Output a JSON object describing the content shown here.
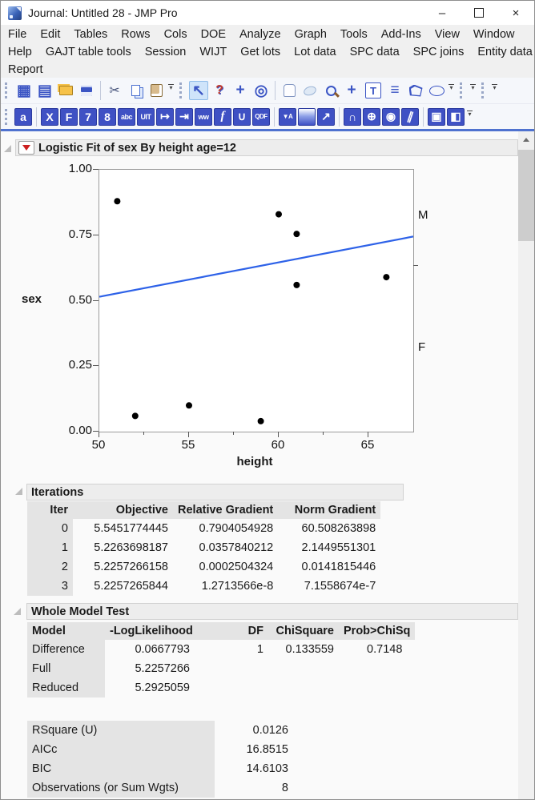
{
  "window": {
    "title": "Journal: Untitled 28 - JMP Pro",
    "controls": {
      "minimize": "–",
      "close": "×"
    }
  },
  "menu": {
    "rows": [
      [
        "File",
        "Edit",
        "Tables",
        "Rows",
        "Cols",
        "DOE",
        "Analyze",
        "Graph",
        "Tools",
        "Add-Ins",
        "View",
        "Window"
      ],
      [
        "Help",
        "GAJT table tools",
        "Session",
        "WIJT",
        "Get lots",
        "Lot data",
        "SPC data",
        "SPC joins",
        "Entity data"
      ],
      [
        "Report"
      ]
    ]
  },
  "toolbar1": {
    "items": [
      {
        "t": "grip"
      },
      {
        "t": "icon",
        "name": "new-data-table-icon",
        "glyph": "▦",
        "cls": "c-blue big"
      },
      {
        "t": "icon",
        "name": "new-journal-icon",
        "glyph": "▤",
        "cls": "c-blue big"
      },
      {
        "t": "icon",
        "name": "open-icon",
        "glyph": "",
        "cls": "folder"
      },
      {
        "t": "icon",
        "name": "save-icon",
        "glyph": "",
        "cls": "floppy"
      },
      {
        "t": "sep"
      },
      {
        "t": "icon",
        "name": "cut-icon",
        "glyph": "✂",
        "cls": "c-steel"
      },
      {
        "t": "icon",
        "name": "copy-icon",
        "glyph": "",
        "cls": "copy"
      },
      {
        "t": "icon",
        "name": "paste-icon",
        "glyph": "",
        "cls": "paste"
      },
      {
        "t": "drop"
      },
      {
        "t": "grip"
      },
      {
        "t": "icon",
        "name": "pointer-tool-icon",
        "glyph": "↖",
        "cls": "c-blue big sel"
      },
      {
        "t": "icon",
        "name": "help-tool-icon",
        "glyph": "?",
        "cls": "c-help"
      },
      {
        "t": "icon",
        "name": "selection-tool-icon",
        "glyph": "+",
        "cls": "c-blue big"
      },
      {
        "t": "icon",
        "name": "bullseye-tool-icon",
        "glyph": "◎",
        "cls": "c-blue big"
      },
      {
        "t": "sep"
      },
      {
        "t": "icon",
        "name": "grabber-hand-tool-icon",
        "glyph": "",
        "cls": "hand"
      },
      {
        "t": "icon",
        "name": "lasso-tool-icon",
        "glyph": "",
        "cls": "lasso"
      },
      {
        "t": "icon",
        "name": "magnifier-tool-icon",
        "glyph": "",
        "cls": "mag"
      },
      {
        "t": "icon",
        "name": "crosshair-tool-icon",
        "glyph": "+",
        "cls": "c-blue big"
      },
      {
        "t": "icon",
        "name": "text-annotate-tool-icon",
        "glyph": "T",
        "cls": "ttool"
      },
      {
        "t": "icon",
        "name": "line-annotate-tool-icon",
        "glyph": "≡",
        "cls": "c-blue big"
      },
      {
        "t": "icon",
        "name": "polygon-tool-icon",
        "glyph": "",
        "cls": "poly"
      },
      {
        "t": "icon",
        "name": "oval-tool-icon",
        "glyph": "",
        "cls": "oval"
      },
      {
        "t": "drop"
      },
      {
        "t": "grip"
      },
      {
        "t": "drop"
      },
      {
        "t": "grip"
      },
      {
        "t": "drop"
      }
    ]
  },
  "toolbar2": {
    "items": [
      {
        "t": "grip"
      },
      {
        "t": "icon",
        "name": "journal-a-icon",
        "glyph": "a",
        "cls": "bsq"
      },
      {
        "t": "sep"
      },
      {
        "t": "icon",
        "name": "x-tool-icon",
        "glyph": "X",
        "cls": "bsq"
      },
      {
        "t": "icon",
        "name": "f-tool-icon",
        "glyph": "F",
        "cls": "bsq"
      },
      {
        "t": "icon",
        "name": "seven-tool-icon",
        "glyph": "7",
        "cls": "bsq"
      },
      {
        "t": "icon",
        "name": "eight-tool-icon",
        "glyph": "8",
        "cls": "bsq"
      },
      {
        "t": "icon",
        "name": "abc-strike-icon",
        "glyph": "abc",
        "cls": "bsq small"
      },
      {
        "t": "icon",
        "name": "uit-icon",
        "glyph": "UIT",
        "cls": "bsq small"
      },
      {
        "t": "icon",
        "name": "arrow-to-bar-icon",
        "glyph": "↦",
        "cls": "bsq"
      },
      {
        "t": "icon",
        "name": "arrow-to-dbl-bar-icon",
        "glyph": "⇥",
        "cls": "bsq"
      },
      {
        "t": "icon",
        "name": "ww-icon",
        "glyph": "ww",
        "cls": "bsq small"
      },
      {
        "t": "icon",
        "name": "function-f-icon",
        "glyph": "f",
        "cls": "bsq ital"
      },
      {
        "t": "icon",
        "name": "cup-icon",
        "glyph": "∪",
        "cls": "bsq"
      },
      {
        "t": "icon",
        "name": "qdf-icon",
        "glyph": "QDF",
        "cls": "bsq tiny"
      },
      {
        "t": "sep"
      },
      {
        "t": "icon",
        "name": "data-filter-icon",
        "glyph": "▼A",
        "cls": "bsq tiny"
      },
      {
        "t": "icon",
        "name": "gradient-square-icon",
        "glyph": "",
        "cls": "bsq grad"
      },
      {
        "t": "icon",
        "name": "grid-arrow-icon",
        "glyph": "↗",
        "cls": "bsq"
      },
      {
        "t": "sep"
      },
      {
        "t": "icon",
        "name": "normal-curve-icon",
        "glyph": "∩",
        "cls": "bsq"
      },
      {
        "t": "icon",
        "name": "mesh-globe-icon",
        "glyph": "⊕",
        "cls": "bsq"
      },
      {
        "t": "icon",
        "name": "circle-in-square-icon",
        "glyph": "◉",
        "cls": "bsq"
      },
      {
        "t": "icon",
        "name": "diagonal-lines-icon",
        "glyph": "∥",
        "cls": "bsq slant"
      },
      {
        "t": "sep"
      },
      {
        "t": "icon",
        "name": "chart-frame-icon",
        "glyph": "▣",
        "cls": "bsq"
      },
      {
        "t": "icon",
        "name": "half-shade-icon",
        "glyph": "◧",
        "cls": "bsq"
      },
      {
        "t": "drop"
      }
    ]
  },
  "report": {
    "title": "Logistic Fit of sex By height age=12",
    "iterations": {
      "title": "Iterations",
      "columns": [
        "Iter",
        "Objective",
        "Relative Gradient",
        "Norm Gradient"
      ],
      "rows": [
        [
          "0",
          "5.5451774445",
          "0.7904054928",
          "60.508263898"
        ],
        [
          "1",
          "5.2263698187",
          "0.0357840212",
          "2.1449551301"
        ],
        [
          "2",
          "5.2257266158",
          "0.0002504324",
          "0.0141815446"
        ],
        [
          "3",
          "5.2257265844",
          "1.2713566e-8",
          "7.1558674e-7"
        ]
      ]
    },
    "whole_model": {
      "title": "Whole Model Test",
      "columns": [
        "Model",
        "-LogLikelihood",
        "DF",
        "ChiSquare",
        "Prob>ChiSq"
      ],
      "rows": [
        [
          "Difference",
          "0.0667793",
          "1",
          "0.133559",
          "0.7148"
        ],
        [
          "Full",
          "5.2257266",
          "",
          "",
          ""
        ],
        [
          "Reduced",
          "5.2925059",
          "",
          "",
          ""
        ]
      ]
    },
    "fit_stats": {
      "rows": [
        [
          "RSquare (U)",
          "0.0126"
        ],
        [
          "AICc",
          "16.8515"
        ],
        [
          "BIC",
          "14.6103"
        ],
        [
          "Observations (or Sum Wgts)",
          "8"
        ]
      ]
    }
  },
  "chart_data": {
    "type": "scatter",
    "title": "Logistic Fit of sex By height age=12",
    "xlabel": "height",
    "ylabel": "sex",
    "xlim": [
      50,
      67.5
    ],
    "ylim": [
      0,
      1
    ],
    "xticks": [
      50,
      55,
      60,
      65
    ],
    "xticks_minor": [
      52.5,
      57.5,
      62.5
    ],
    "yticks": [
      {
        "v": 1.0,
        "label": "1.00"
      },
      {
        "v": 0.75,
        "label": "0.75"
      },
      {
        "v": 0.5,
        "label": "0.50"
      },
      {
        "v": 0.25,
        "label": "0.25"
      },
      {
        "v": 0.0,
        "label": "0.00"
      }
    ],
    "points": [
      [
        51,
        0.88
      ],
      [
        60,
        0.83
      ],
      [
        61,
        0.755
      ],
      [
        61,
        0.56
      ],
      [
        66,
        0.59
      ],
      [
        52,
        0.06
      ],
      [
        55,
        0.1
      ],
      [
        59,
        0.04
      ]
    ],
    "point_color": "#000000",
    "fit_line": {
      "x1": 50,
      "y1": 0.515,
      "x2": 67.5,
      "y2": 0.745,
      "color": "#2e62e8"
    },
    "right_axis_labels": [
      {
        "label": "M",
        "y": 0.822
      },
      {
        "label": "F",
        "y": 0.318
      }
    ],
    "right_axis_tick_y": 0.633,
    "grid": false,
    "legend": "none"
  }
}
